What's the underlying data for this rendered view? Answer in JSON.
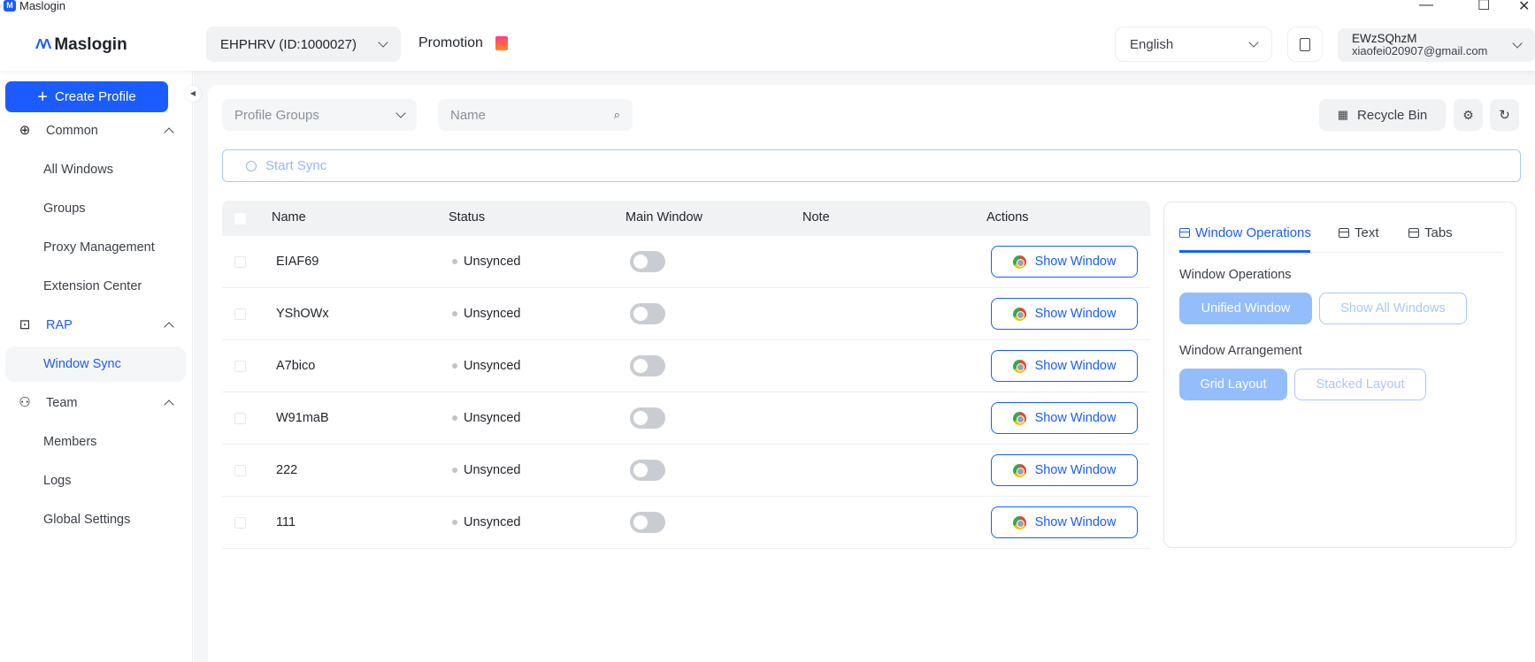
{
  "window": {
    "title": "Maslogin",
    "minimize": "—",
    "maximize": "☐",
    "close": "✕"
  },
  "header": {
    "logo": "Maslogin",
    "account": "EHPHRV (ID:1000027)",
    "promotion": "Promotion",
    "language": "English",
    "user": {
      "name": "EWzSQhzM",
      "email": "xiaofei020907@gmail.com"
    }
  },
  "sidebar": {
    "create_label": "Create Profile",
    "groups": [
      {
        "label": "Common",
        "icon": "globe-icon",
        "items": [
          "All Windows",
          "Groups",
          "Proxy Management",
          "Extension Center"
        ]
      },
      {
        "label": "RAP",
        "icon": "robot-icon",
        "items": [
          "Window Sync"
        ]
      },
      {
        "label": "Team",
        "icon": "team-icon",
        "items": [
          "Members",
          "Logs",
          "Global Settings"
        ]
      }
    ],
    "active": "Window Sync"
  },
  "filters": {
    "groups_placeholder": "Profile Groups",
    "name_placeholder": "Name",
    "recycle_bin": "Recycle Bin"
  },
  "sync": {
    "start_label": "Start Sync"
  },
  "table": {
    "headers": [
      "Name",
      "Status",
      "Main Window",
      "Note",
      "Actions"
    ],
    "rows": [
      {
        "name": "EIAF69",
        "status": "Unsynced",
        "main_window": false,
        "note": "",
        "action": "Show Window"
      },
      {
        "name": "YShOWx",
        "status": "Unsynced",
        "main_window": false,
        "note": "",
        "action": "Show Window"
      },
      {
        "name": "A7bico",
        "status": "Unsynced",
        "main_window": false,
        "note": "",
        "action": "Show Window"
      },
      {
        "name": "W91maB",
        "status": "Unsynced",
        "main_window": false,
        "note": "",
        "action": "Show Window"
      },
      {
        "name": "222",
        "status": "Unsynced",
        "main_window": false,
        "note": "",
        "action": "Show Window"
      },
      {
        "name": "111",
        "status": "Unsynced",
        "main_window": false,
        "note": "",
        "action": "Show Window"
      }
    ]
  },
  "panel": {
    "tabs": [
      "Window Operations",
      "Text",
      "Tabs"
    ],
    "active_tab": "Window Operations",
    "operations_title": "Window Operations",
    "unified": "Unified Window",
    "show_all": "Show All Windows",
    "arrangement_title": "Window Arrangement",
    "grid": "Grid Layout",
    "stacked": "Stacked Layout"
  },
  "colors": {
    "accent": "#1a5cff",
    "disabled_fill": "#94bdfb",
    "bg": "#f5f6f8"
  }
}
